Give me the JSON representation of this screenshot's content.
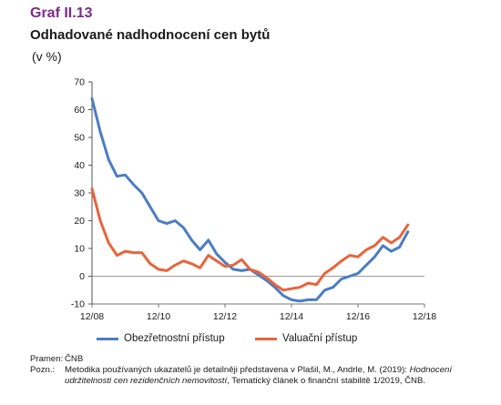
{
  "header": {
    "figure_label": "Graf II.13",
    "title": "Odhadované nadhodnocení cen bytů",
    "unit": "(v %)"
  },
  "colors": {
    "accent": "#7b2a8c",
    "series_prudential": "#4a7dc4",
    "series_valuation": "#e8643c",
    "zero_line": "#9a9a9a"
  },
  "chart_data": {
    "type": "line",
    "title": "Odhadované nadhodnocení cen bytů",
    "ylabel": "(v %)",
    "ylim": [
      -10,
      70
    ],
    "yticks": [
      -10,
      0,
      10,
      20,
      30,
      40,
      50,
      60,
      70
    ],
    "xlim": [
      0,
      40
    ],
    "xticks": [
      {
        "x": 0,
        "label": "12/08"
      },
      {
        "x": 8,
        "label": "12/10"
      },
      {
        "x": 16,
        "label": "12/12"
      },
      {
        "x": 24,
        "label": "12/14"
      },
      {
        "x": 32,
        "label": "12/16"
      },
      {
        "x": 40,
        "label": "12/18"
      }
    ],
    "grid": false,
    "legend_position": "bottom",
    "x": [
      0,
      1,
      2,
      3,
      4,
      5,
      6,
      7,
      8,
      9,
      10,
      11,
      12,
      13,
      14,
      15,
      16,
      17,
      18,
      19,
      20,
      21,
      22,
      23,
      24,
      25,
      26,
      27,
      28,
      29,
      30,
      31,
      32,
      33,
      34,
      35,
      36,
      37,
      38,
      39,
      40
    ],
    "series": [
      {
        "name": "Obezřetnostní přístup",
        "color": "#4a7dc4",
        "values": [
          64,
          52,
          42,
          36,
          36.5,
          33,
          30,
          25,
          20,
          19,
          20,
          17.5,
          13,
          9.5,
          13,
          8,
          5,
          2.5,
          2,
          2.5,
          0.5,
          -1.5,
          -4,
          -7,
          -8.5,
          -9,
          -8.5,
          -8.5,
          -5,
          -4,
          -1,
          0,
          1,
          4,
          7,
          11,
          9,
          10.5,
          16,
          null,
          null
        ]
      },
      {
        "name": "Valuační přístup",
        "color": "#e8643c",
        "values": [
          31.5,
          20,
          12,
          7.5,
          9,
          8.5,
          8.5,
          4.5,
          2.5,
          2,
          4,
          5.5,
          4.5,
          3,
          7.5,
          5.5,
          3.5,
          4,
          6,
          2.5,
          1.5,
          -0.5,
          -3,
          -5,
          -4.5,
          -4,
          -2.5,
          -3,
          1,
          3,
          5.5,
          7.5,
          7,
          9.5,
          11,
          14,
          12,
          14,
          18.5,
          null,
          null
        ]
      }
    ]
  },
  "notes": {
    "source_key": "Pramen:",
    "source_text": "ČNB",
    "note_key": "Pozn.:",
    "note_text_1": "Metodika používaných ukazatelů je detailněji představena v Plašil, M., Andrle, M. (2019): ",
    "note_text_italic": "Hodnocení udržitelnosti cen rezidenčních nemovitostí",
    "note_text_2": ", Tematický článek o finanční stabilitě 1/2019, ČNB."
  }
}
